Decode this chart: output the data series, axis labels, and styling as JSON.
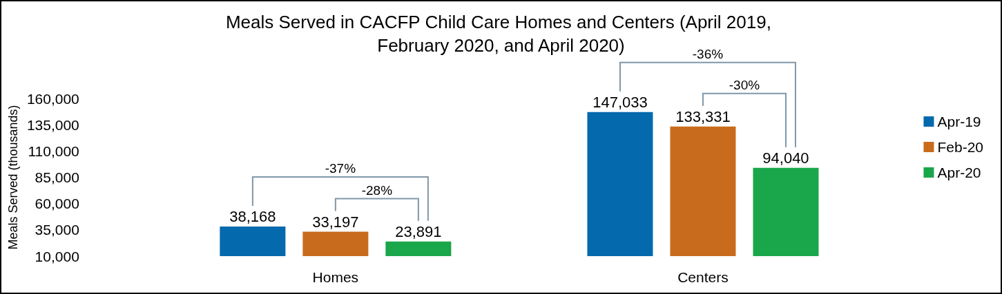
{
  "chart_data": {
    "type": "bar",
    "title": "Meals Served in CACFP Child Care Homes and Centers (April 2019, February 2020, and April 2020)",
    "ylabel": "Meals Served (thousands)",
    "categories": [
      "Homes",
      "Centers"
    ],
    "series": [
      {
        "name": "Apr-19",
        "color": "#0469ad",
        "values": [
          38168,
          147033
        ],
        "value_labels": [
          "38,168",
          "147,033"
        ]
      },
      {
        "name": "Feb-20",
        "color": "#c96b1c",
        "values": [
          33197,
          133331
        ],
        "value_labels": [
          "33,197",
          "133,331"
        ]
      },
      {
        "name": "Apr-20",
        "color": "#1aa64b",
        "values": [
          23891,
          94040
        ],
        "value_labels": [
          "23,891",
          "94,040"
        ]
      }
    ],
    "ylim": [
      10000,
      160000
    ],
    "yticks": [
      {
        "value": 10000,
        "label": "10,000"
      },
      {
        "value": 35000,
        "label": "35,000"
      },
      {
        "value": 60000,
        "label": "60,000"
      },
      {
        "value": 85000,
        "label": "85,000"
      },
      {
        "value": 110000,
        "label": "110,000"
      },
      {
        "value": 135000,
        "label": "135,000"
      },
      {
        "value": 160000,
        "label": "160,000"
      }
    ],
    "grid": false,
    "legend": "right",
    "annotations": [
      "-37%",
      "-28%",
      "-36%",
      "-30%"
    ]
  }
}
